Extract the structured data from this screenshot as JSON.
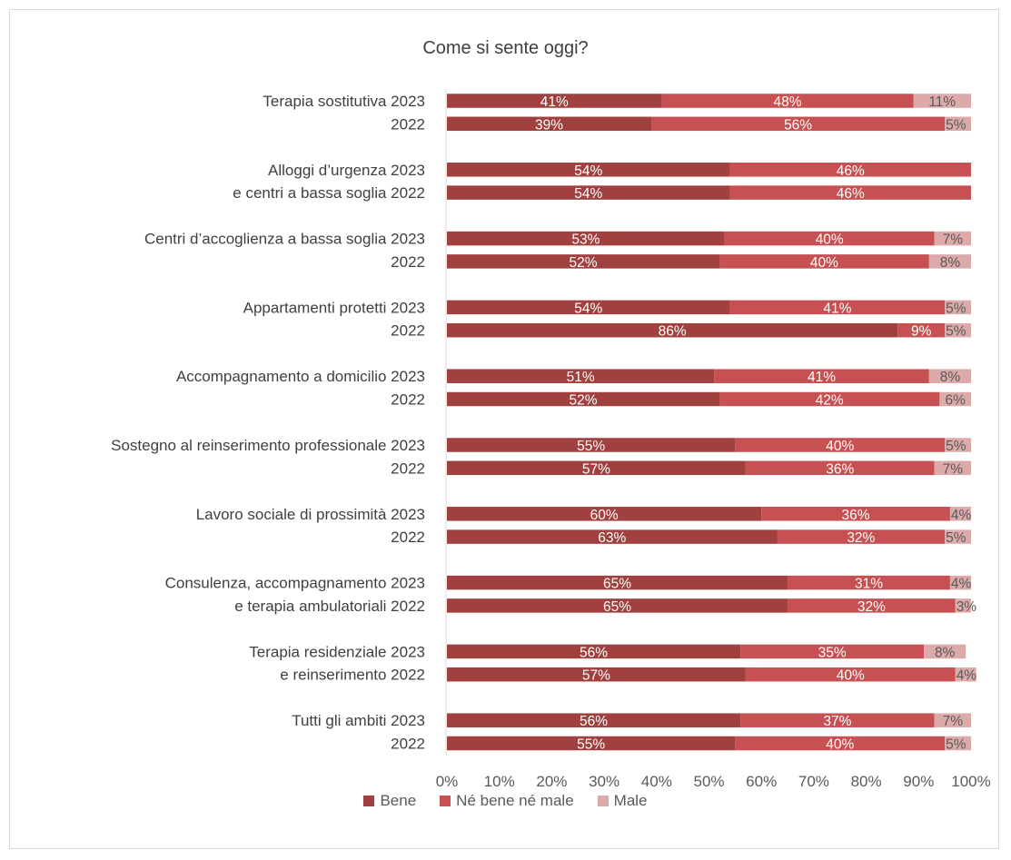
{
  "chart_data": {
    "type": "bar",
    "orientation": "horizontal",
    "stacked": "percent",
    "title": "Come si sente oggi?",
    "xlim": [
      0,
      100
    ],
    "x_ticks": [
      "0%",
      "10%",
      "20%",
      "30%",
      "40%",
      "50%",
      "60%",
      "70%",
      "80%",
      "90%",
      "100%"
    ],
    "grid": false,
    "legend_position": "bottom",
    "groups": [
      {
        "label_2023": "Terapia sostitutiva 2023",
        "label_2022": "2022"
      },
      {
        "label_2023": "Alloggi d’urgenza 2023",
        "label_2022": "e centri a bassa soglia 2022"
      },
      {
        "label_2023": "Centri d’accoglienza a bassa soglia 2023",
        "label_2022": "2022"
      },
      {
        "label_2023": "Appartamenti protetti 2023",
        "label_2022": "2022"
      },
      {
        "label_2023": "Accompagnamento a domicilio 2023",
        "label_2022": "2022"
      },
      {
        "label_2023": "Sostegno al reinserimento professionale 2023",
        "label_2022": "2022"
      },
      {
        "label_2023": "Lavoro sociale di prossimità 2023",
        "label_2022": "2022"
      },
      {
        "label_2023": "Consulenza, accompagnamento 2023",
        "label_2022": "e terapia ambulatoriali 2022"
      },
      {
        "label_2023": "Terapia residenziale 2023",
        "label_2022": "e reinserimento 2022"
      },
      {
        "label_2023": "Tutti gli ambiti 2023",
        "label_2022": "2022"
      }
    ],
    "series": [
      {
        "name": "Bene",
        "color": "#a0403f",
        "values": [
          41,
          39,
          54,
          54,
          53,
          52,
          54,
          86,
          51,
          52,
          55,
          57,
          60,
          63,
          65,
          65,
          56,
          57,
          56,
          55
        ]
      },
      {
        "name": "Né bene né male",
        "color": "#c65052",
        "values": [
          48,
          56,
          46,
          46,
          40,
          40,
          41,
          9,
          41,
          42,
          40,
          36,
          36,
          32,
          31,
          32,
          35,
          40,
          37,
          40
        ]
      },
      {
        "name": "Male",
        "color": "#ddaaaa",
        "values": [
          11,
          5,
          null,
          null,
          7,
          8,
          5,
          5,
          8,
          6,
          5,
          7,
          4,
          5,
          4,
          3,
          8,
          4,
          7,
          5
        ]
      }
    ],
    "value_labels": [
      [
        "41%",
        "48%",
        "11%"
      ],
      [
        "39%",
        "56%",
        "5%"
      ],
      [
        "54%",
        "46%",
        ""
      ],
      [
        "54%",
        "46%",
        ""
      ],
      [
        "53%",
        "40%",
        "7%"
      ],
      [
        "52%",
        "40%",
        "8%"
      ],
      [
        "54%",
        "41%",
        "5%"
      ],
      [
        "86%",
        "9%",
        "5%"
      ],
      [
        "51%",
        "41%",
        "8%"
      ],
      [
        "52%",
        "42%",
        "6%"
      ],
      [
        "55%",
        "40%",
        "5%"
      ],
      [
        "57%",
        "36%",
        "7%"
      ],
      [
        "60%",
        "36%",
        "4%"
      ],
      [
        "63%",
        "32%",
        "5%"
      ],
      [
        "65%",
        "31%",
        "4%"
      ],
      [
        "65%",
        "32%",
        "3%"
      ],
      [
        "56%",
        "35%",
        "8%"
      ],
      [
        "57%",
        "40%",
        "4%"
      ],
      [
        "56%",
        "37%",
        "7%"
      ],
      [
        "55%",
        "40%",
        "5%"
      ]
    ]
  }
}
